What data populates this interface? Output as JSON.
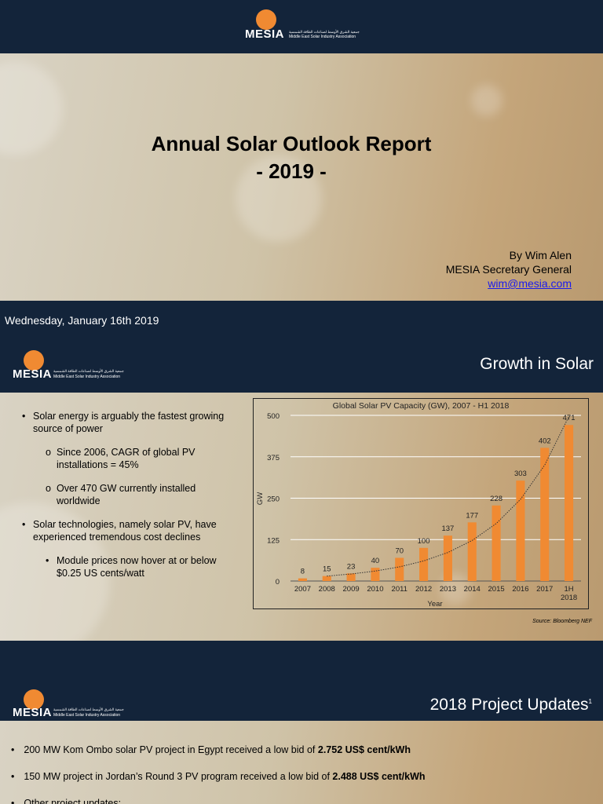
{
  "logo": {
    "text": "MESIA",
    "arabic": "جمعية الشرق الأوسط لصناعات الطاقة الشمسية",
    "tagline": "Middle East Solar Industry Association"
  },
  "slide1": {
    "title": "Annual Solar Outlook Report",
    "subtitle": "- 2019 -",
    "byline": "By Wim Alen",
    "role": "MESIA Secretary General",
    "email": "wim@mesia.com"
  },
  "date": "Wednesday, January 16th 2019",
  "slide2": {
    "heading": "Growth in Solar",
    "bullets": [
      {
        "level": 1,
        "text": "Solar energy is arguably the fastest growing source of power"
      },
      {
        "level": 2,
        "text": "Since 2006, CAGR of global PV installations = 45%"
      },
      {
        "level": 2,
        "text": "Over 470 GW currently installed worldwide"
      },
      {
        "level": 1,
        "text": "Solar technologies, namely solar PV, have experienced tremendous cost declines"
      },
      {
        "level": 3,
        "text": "Module prices now hover at or below $0.25 US cents/watt"
      }
    ],
    "source": "Source: Bloomberg NEF"
  },
  "chart_data": {
    "type": "bar",
    "title": "Global Solar PV Capacity (GW), 2007 - H1 2018",
    "xlabel": "Year",
    "ylabel": "GW",
    "categories": [
      "2007",
      "2008",
      "2009",
      "2010",
      "2011",
      "2012",
      "2013",
      "2014",
      "2015",
      "2016",
      "2017",
      "1H 2018"
    ],
    "values": [
      8,
      15,
      23,
      40,
      70,
      100,
      137,
      177,
      228,
      303,
      402,
      471
    ],
    "ylim": [
      0,
      500
    ],
    "yticks": [
      0,
      125,
      250,
      375,
      500
    ],
    "grid": true,
    "trendline": "exponential, dotted",
    "bar_color": "#f08a32"
  },
  "slide3": {
    "heading": "2018 Project Updates",
    "footnote_mark": "1",
    "bullets": [
      {
        "text": "200 MW Kom Ombo solar PV project in Egypt received a low bid of ",
        "bold": "2.752 US$ cent/kWh"
      },
      {
        "text": "150 MW project in Jordan’s Round 3 PV program received a low bid of ",
        "bold": "2.488 US$ cent/kWh"
      },
      {
        "text": "Other project updates:",
        "bold": ""
      }
    ]
  }
}
